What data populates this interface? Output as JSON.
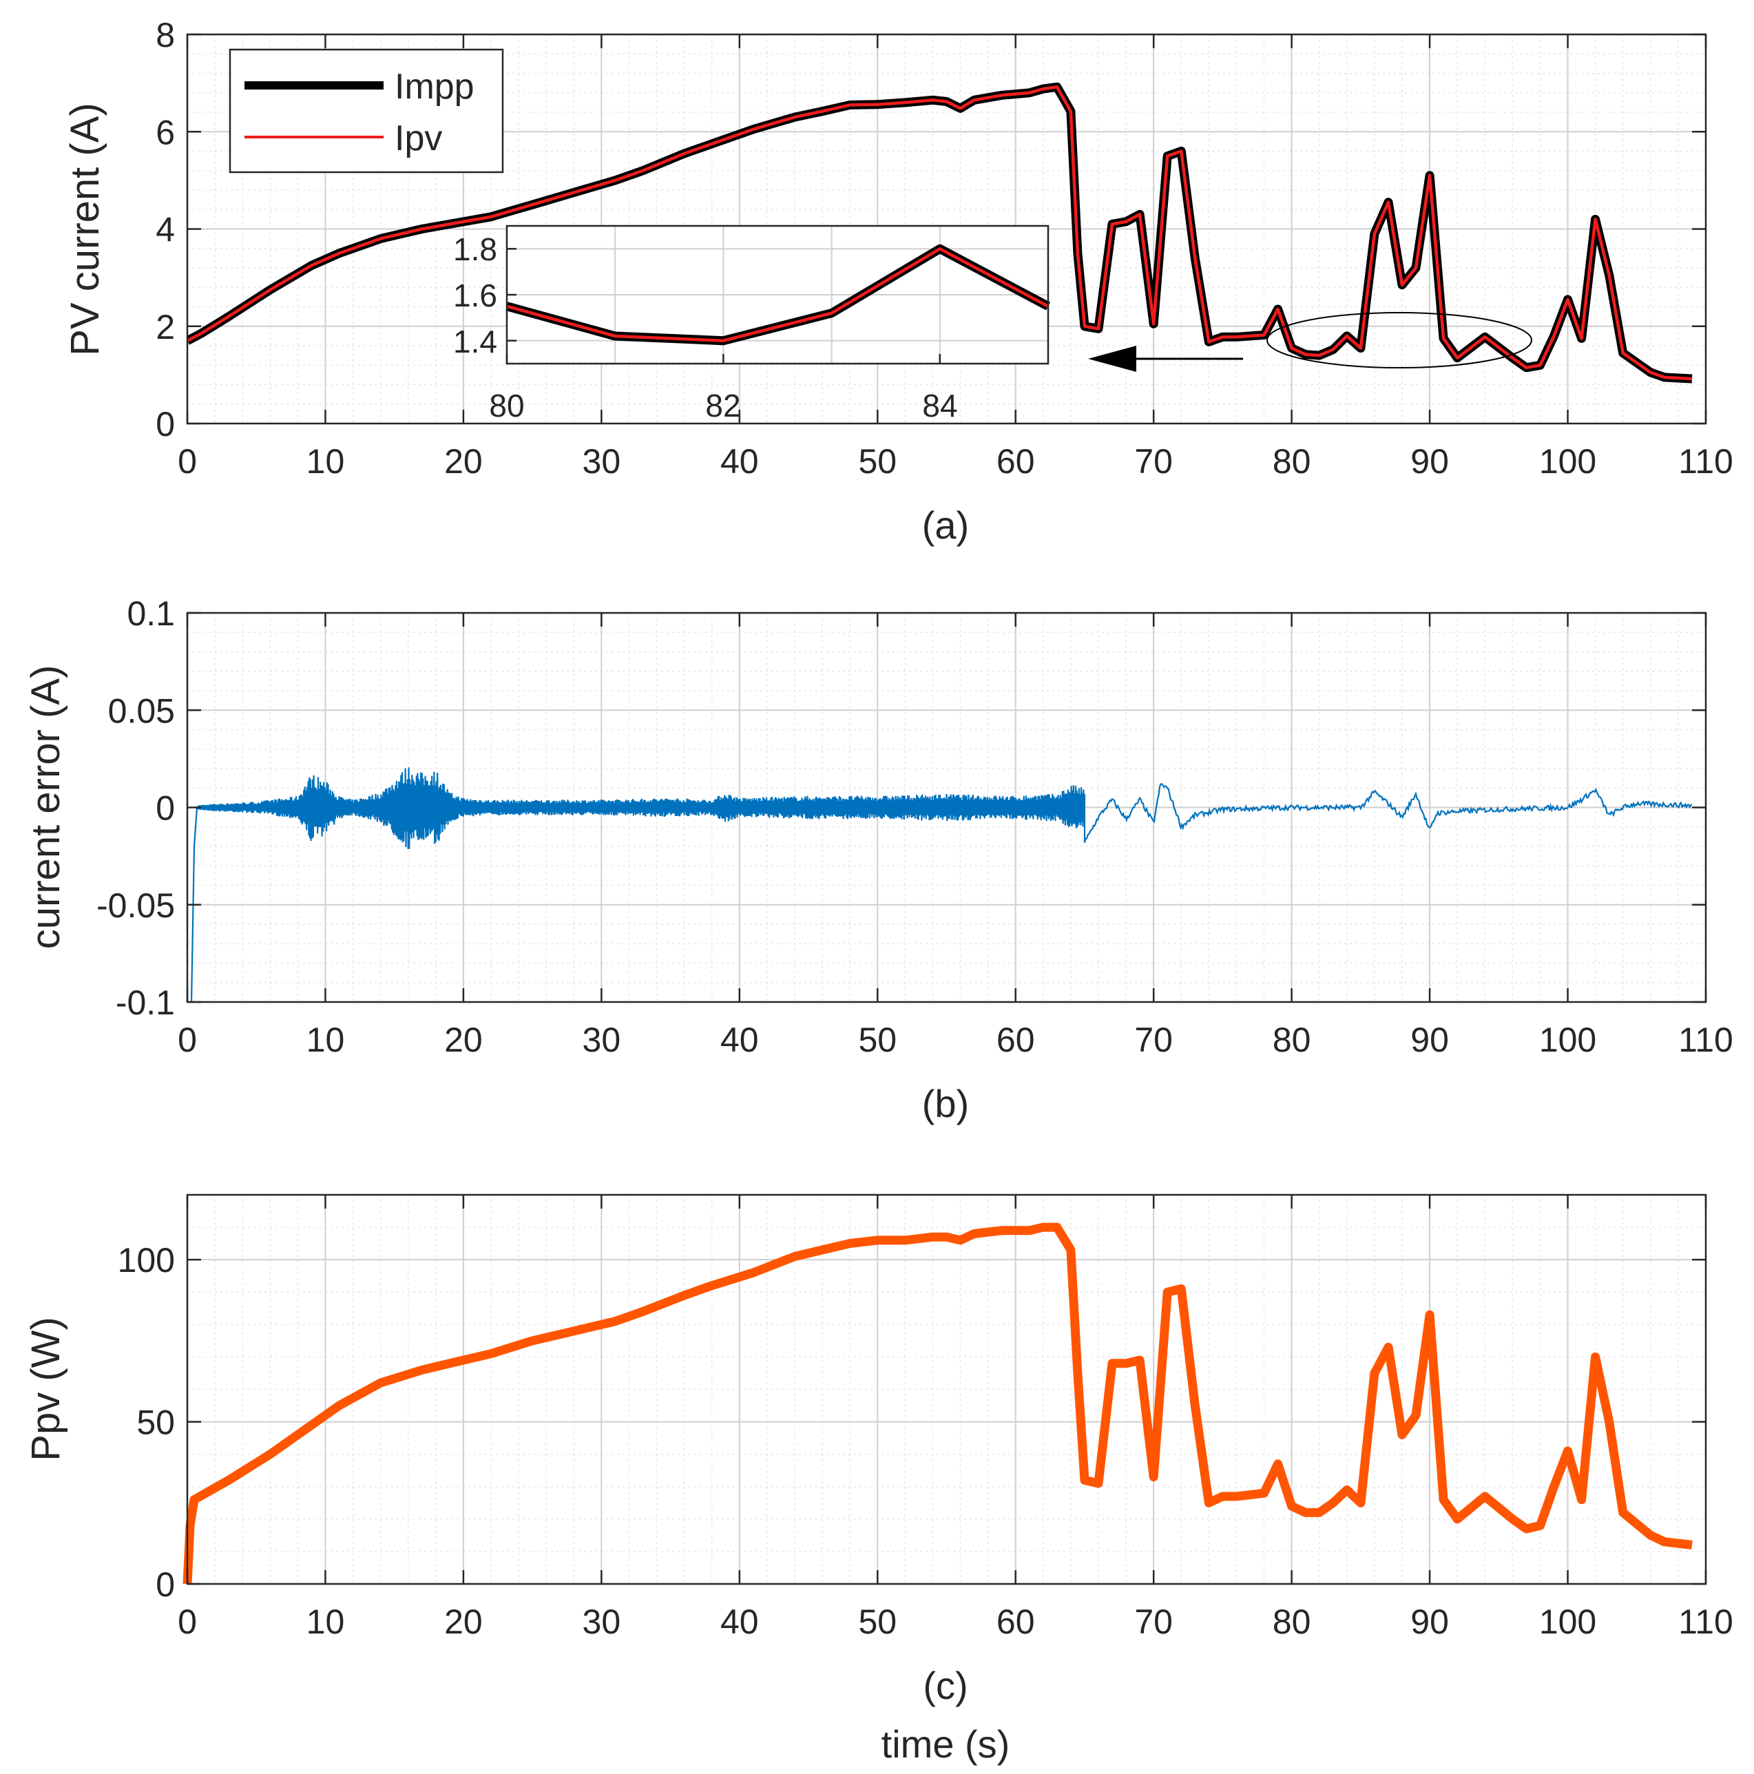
{
  "colors": {
    "impp": "#000000",
    "ipv": "#ee1c1c",
    "error": "#0072bd",
    "ppv": "#ff5500",
    "axis": "#262626",
    "grid_major": "#cfcfcf",
    "grid_minor": "#e6e6e6"
  },
  "chart_data": [
    {
      "id": "a",
      "type": "line",
      "caption": "(a)",
      "ylabel": "PV current (A)",
      "xlabel": "",
      "xlim": [
        0,
        110
      ],
      "ylim": [
        0,
        8
      ],
      "xticks": [
        0,
        10,
        20,
        30,
        40,
        50,
        60,
        70,
        80,
        90,
        100,
        110
      ],
      "yticks": [
        0,
        2,
        4,
        6,
        8
      ],
      "grid": true,
      "legend": {
        "position": "top-left",
        "entries": [
          "Impp",
          "Ipv"
        ]
      },
      "series": [
        {
          "name": "Impp",
          "color_key": "impp",
          "x": [
            0,
            1,
            3,
            6,
            9,
            11,
            14,
            17,
            20,
            22,
            25,
            28,
            31,
            33,
            36,
            38,
            41,
            44,
            46,
            48,
            50,
            52,
            54,
            55,
            56,
            57,
            59,
            61,
            62,
            63,
            64,
            64.5,
            65,
            66,
            67,
            68,
            69,
            70,
            71,
            72,
            73,
            74,
            75,
            76,
            78,
            79,
            80,
            81,
            82,
            83,
            84,
            85,
            86,
            87,
            88,
            89,
            90,
            91,
            92,
            94,
            96,
            97,
            98,
            99,
            100,
            101,
            102,
            103,
            104,
            106,
            107,
            109
          ],
          "y": [
            1.7,
            1.85,
            2.2,
            2.75,
            3.25,
            3.5,
            3.8,
            4.0,
            4.15,
            4.25,
            4.5,
            4.75,
            5.0,
            5.2,
            5.55,
            5.75,
            6.05,
            6.3,
            6.42,
            6.55,
            6.56,
            6.6,
            6.65,
            6.62,
            6.48,
            6.65,
            6.75,
            6.8,
            6.88,
            6.92,
            6.42,
            3.5,
            2.0,
            1.95,
            4.1,
            4.15,
            4.3,
            2.05,
            5.5,
            5.6,
            3.4,
            1.68,
            1.78,
            1.78,
            1.82,
            2.35,
            1.55,
            1.42,
            1.4,
            1.52,
            1.8,
            1.55,
            3.9,
            4.55,
            2.85,
            3.2,
            5.1,
            1.75,
            1.35,
            1.78,
            1.35,
            1.15,
            1.2,
            1.8,
            2.55,
            1.75,
            4.2,
            3.05,
            1.45,
            1.05,
            0.95,
            0.92
          ]
        },
        {
          "name": "Ipv",
          "color_key": "ipv",
          "x": [
            0,
            1,
            3,
            6,
            9,
            11,
            14,
            17,
            20,
            22,
            25,
            28,
            31,
            33,
            36,
            38,
            41,
            44,
            46,
            48,
            50,
            52,
            54,
            55,
            56,
            57,
            59,
            61,
            62,
            63,
            64,
            64.5,
            65,
            66,
            67,
            68,
            69,
            70,
            71,
            72,
            73,
            74,
            75,
            76,
            78,
            79,
            80,
            81,
            82,
            83,
            84,
            85,
            86,
            87,
            88,
            89,
            90,
            91,
            92,
            94,
            96,
            97,
            98,
            99,
            100,
            101,
            102,
            103,
            104,
            106,
            107,
            109
          ],
          "y": [
            1.7,
            1.85,
            2.2,
            2.75,
            3.25,
            3.5,
            3.8,
            4.0,
            4.15,
            4.25,
            4.5,
            4.75,
            5.0,
            5.2,
            5.55,
            5.75,
            6.05,
            6.3,
            6.42,
            6.55,
            6.56,
            6.6,
            6.65,
            6.62,
            6.48,
            6.65,
            6.75,
            6.8,
            6.88,
            6.92,
            6.42,
            3.5,
            2.0,
            1.95,
            4.1,
            4.15,
            4.3,
            2.05,
            5.5,
            5.6,
            3.4,
            1.68,
            1.78,
            1.78,
            1.82,
            2.35,
            1.55,
            1.42,
            1.4,
            1.52,
            1.8,
            1.55,
            3.9,
            4.55,
            2.85,
            3.2,
            5.1,
            1.75,
            1.35,
            1.78,
            1.35,
            1.15,
            1.2,
            1.8,
            2.55,
            1.75,
            4.2,
            3.05,
            1.45,
            1.05,
            0.95,
            0.92
          ]
        }
      ],
      "inset": {
        "xlim": [
          80,
          85
        ],
        "ylim": [
          1.3,
          1.9
        ],
        "xticks": [
          80,
          82,
          84
        ],
        "xtick_labels": [
          "80",
          "82",
          "84"
        ],
        "yticks": [
          1.4,
          1.6,
          1.8
        ],
        "ytick_labels": [
          "1.4",
          "1.6",
          "1.8"
        ],
        "x": [
          80,
          81,
          82,
          83,
          84,
          85
        ],
        "y": [
          1.55,
          1.42,
          1.4,
          1.52,
          1.8,
          1.55
        ]
      }
    },
    {
      "id": "b",
      "type": "line",
      "caption": "(b)",
      "ylabel": "current error (A)",
      "xlabel": "",
      "xlim": [
        0,
        110
      ],
      "ylim": [
        -0.1,
        0.1
      ],
      "xticks": [
        0,
        10,
        20,
        30,
        40,
        50,
        60,
        70,
        80,
        90,
        100,
        110
      ],
      "yticks": [
        -0.1,
        -0.05,
        0,
        0.05,
        0.1
      ],
      "ytick_labels": [
        "-0.1",
        "-0.05",
        "0",
        "0.05",
        "0.1"
      ],
      "grid": true,
      "series": [
        {
          "name": "error",
          "color_key": "error",
          "envelope_x": [
            0.5,
            2,
            5,
            8,
            9,
            10,
            11,
            12,
            14,
            15,
            16,
            17,
            18,
            19,
            20,
            22,
            25,
            30,
            35,
            38,
            39,
            40,
            45,
            50,
            55,
            60,
            62,
            63,
            64,
            65
          ],
          "envelope_amp": [
            0.001,
            0.002,
            0.003,
            0.006,
            0.018,
            0.014,
            0.006,
            0.004,
            0.008,
            0.015,
            0.022,
            0.018,
            0.02,
            0.008,
            0.005,
            0.004,
            0.004,
            0.004,
            0.005,
            0.004,
            0.008,
            0.005,
            0.006,
            0.006,
            0.007,
            0.006,
            0.007,
            0.007,
            0.012,
            0.01
          ],
          "step_x": [
            65,
            66,
            67,
            68,
            69,
            70,
            70.5,
            71,
            72,
            73,
            75,
            80,
            85,
            86,
            87,
            88,
            89,
            90,
            90.5,
            92,
            95,
            100,
            101,
            102,
            103,
            104,
            105,
            109
          ],
          "step_y": [
            -0.018,
            -0.005,
            0.004,
            -0.006,
            0.004,
            -0.008,
            0.012,
            0.01,
            -0.01,
            -0.004,
            -0.001,
            0.0,
            0.0,
            0.008,
            0.002,
            -0.005,
            0.007,
            -0.012,
            -0.003,
            -0.002,
            -0.001,
            0.0,
            0.004,
            0.009,
            -0.004,
            0.0,
            0.002,
            0.001
          ],
          "transient_x": [
            0,
            0.3,
            0.5,
            0.7
          ],
          "transient_y": [
            -0.1,
            -0.1,
            -0.02,
            0.0
          ]
        }
      ]
    },
    {
      "id": "c",
      "type": "line",
      "caption": "(c)",
      "ylabel": "Ppv (W)",
      "xlabel": "time (s)",
      "xlim": [
        0,
        110
      ],
      "ylim": [
        0,
        120
      ],
      "xticks": [
        0,
        10,
        20,
        30,
        40,
        50,
        60,
        70,
        80,
        90,
        100,
        110
      ],
      "yticks": [
        0,
        50,
        100
      ],
      "grid": true,
      "series": [
        {
          "name": "Ppv",
          "color_key": "ppv",
          "x": [
            0,
            0.2,
            0.5,
            3,
            6,
            9,
            11,
            14,
            17,
            20,
            22,
            25,
            28,
            31,
            33,
            36,
            38,
            41,
            44,
            46,
            48,
            50,
            52,
            54,
            55,
            56,
            57,
            59,
            61,
            62,
            63,
            64,
            64.5,
            65,
            66,
            67,
            68,
            69,
            70,
            71,
            72,
            73,
            74,
            75,
            76,
            78,
            79,
            80,
            81,
            82,
            83,
            84,
            85,
            86,
            87,
            88,
            89,
            90,
            91,
            92,
            94,
            96,
            97,
            98,
            99,
            100,
            101,
            102,
            103,
            104,
            106,
            107,
            109
          ],
          "y": [
            0,
            18,
            26,
            32,
            40,
            49,
            55,
            62,
            66,
            69,
            71,
            75,
            78,
            81,
            84,
            89,
            92,
            96,
            101,
            103,
            105,
            106,
            106,
            107,
            107,
            106,
            108,
            109,
            109,
            110,
            110,
            103,
            65,
            32,
            31,
            68,
            68,
            69,
            33,
            90,
            91,
            55,
            25,
            27,
            27,
            28,
            37,
            24,
            22,
            22,
            25,
            29,
            25,
            65,
            73,
            46,
            52,
            83,
            26,
            20,
            27,
            20,
            17,
            18,
            30,
            41,
            26,
            70,
            50,
            22,
            15,
            13,
            12
          ]
        }
      ]
    }
  ]
}
